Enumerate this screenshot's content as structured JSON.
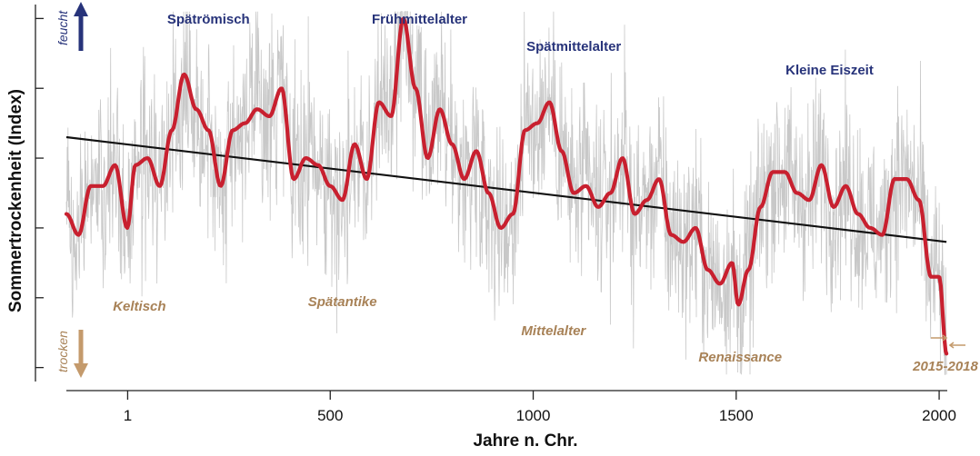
{
  "chart_data": {
    "type": "line",
    "xlabel": "Jahre n. Chr.",
    "ylabel": "Sommertrockenheit (Index)",
    "xlim": [
      -150,
      2020
    ],
    "x_ticks": [
      1,
      500,
      1000,
      1500,
      2000
    ],
    "x_tick_labels": [
      "1",
      "500",
      "1000",
      "1500",
      "2000"
    ],
    "ylim": [
      -2.7,
      2.7
    ],
    "y_ticks": [
      -2.5,
      -1.5,
      -0.5,
      0.5,
      1.5,
      2.5
    ],
    "grid": false,
    "direction_labels": {
      "up": "feucht",
      "down": "trocken"
    },
    "period_labels_wet": [
      {
        "text": "Spätrömisch",
        "x": 200
      },
      {
        "text": "Frühmittelalter",
        "x": 720
      },
      {
        "text": "Spätmittelalter",
        "x": 1100
      },
      {
        "text": "Kleine Eiszeit",
        "x": 1730
      }
    ],
    "period_labels_dry": [
      {
        "text": "Keltisch",
        "x": 30
      },
      {
        "text": "Spätantike",
        "x": 530
      },
      {
        "text": "Mittelalter",
        "x": 1050
      },
      {
        "text": "Renaissance",
        "x": 1510
      },
      {
        "text": "2015-2018",
        "x": 2015
      }
    ],
    "series": [
      {
        "style": "annual",
        "color": "#c8c8c8",
        "note": "annual values, high variance around the smoothed curve"
      },
      {
        "style": "smoothed",
        "color": "#c8202f",
        "x": [
          -150,
          -120,
          -90,
          -60,
          -30,
          0,
          20,
          50,
          80,
          110,
          140,
          170,
          200,
          230,
          260,
          290,
          320,
          350,
          380,
          410,
          440,
          470,
          500,
          530,
          560,
          590,
          620,
          650,
          680,
          710,
          740,
          770,
          800,
          830,
          860,
          890,
          920,
          950,
          980,
          1010,
          1040,
          1070,
          1100,
          1130,
          1160,
          1190,
          1220,
          1250,
          1280,
          1310,
          1340,
          1370,
          1400,
          1430,
          1460,
          1490,
          1505,
          1530,
          1560,
          1590,
          1620,
          1650,
          1680,
          1710,
          1740,
          1770,
          1800,
          1830,
          1860,
          1890,
          1920,
          1950,
          1980,
          2000,
          2018
        ],
        "y": [
          -0.3,
          -0.6,
          0.1,
          0.1,
          0.4,
          -0.5,
          0.4,
          0.5,
          0.1,
          0.9,
          1.7,
          1.2,
          0.9,
          0.1,
          0.9,
          1.0,
          1.2,
          1.1,
          1.5,
          0.2,
          0.5,
          0.4,
          0.1,
          -0.1,
          0.7,
          0.2,
          1.3,
          1.1,
          2.5,
          1.5,
          0.5,
          1.2,
          0.7,
          0.2,
          0.6,
          0.0,
          -0.5,
          -0.3,
          0.9,
          1.0,
          1.3,
          0.6,
          0.0,
          0.1,
          -0.2,
          0.0,
          0.5,
          -0.3,
          -0.1,
          0.2,
          -0.6,
          -0.7,
          -0.5,
          -1.1,
          -1.3,
          -1.0,
          -1.6,
          -1.1,
          -0.2,
          0.3,
          0.3,
          0.0,
          -0.1,
          0.4,
          -0.2,
          0.1,
          -0.3,
          -0.5,
          -0.6,
          0.2,
          0.2,
          -0.1,
          -1.2,
          -1.2,
          -2.3
        ]
      },
      {
        "style": "trend",
        "color": "#111111",
        "x": [
          -150,
          2018
        ],
        "y": [
          0.8,
          -0.7
        ]
      }
    ]
  }
}
